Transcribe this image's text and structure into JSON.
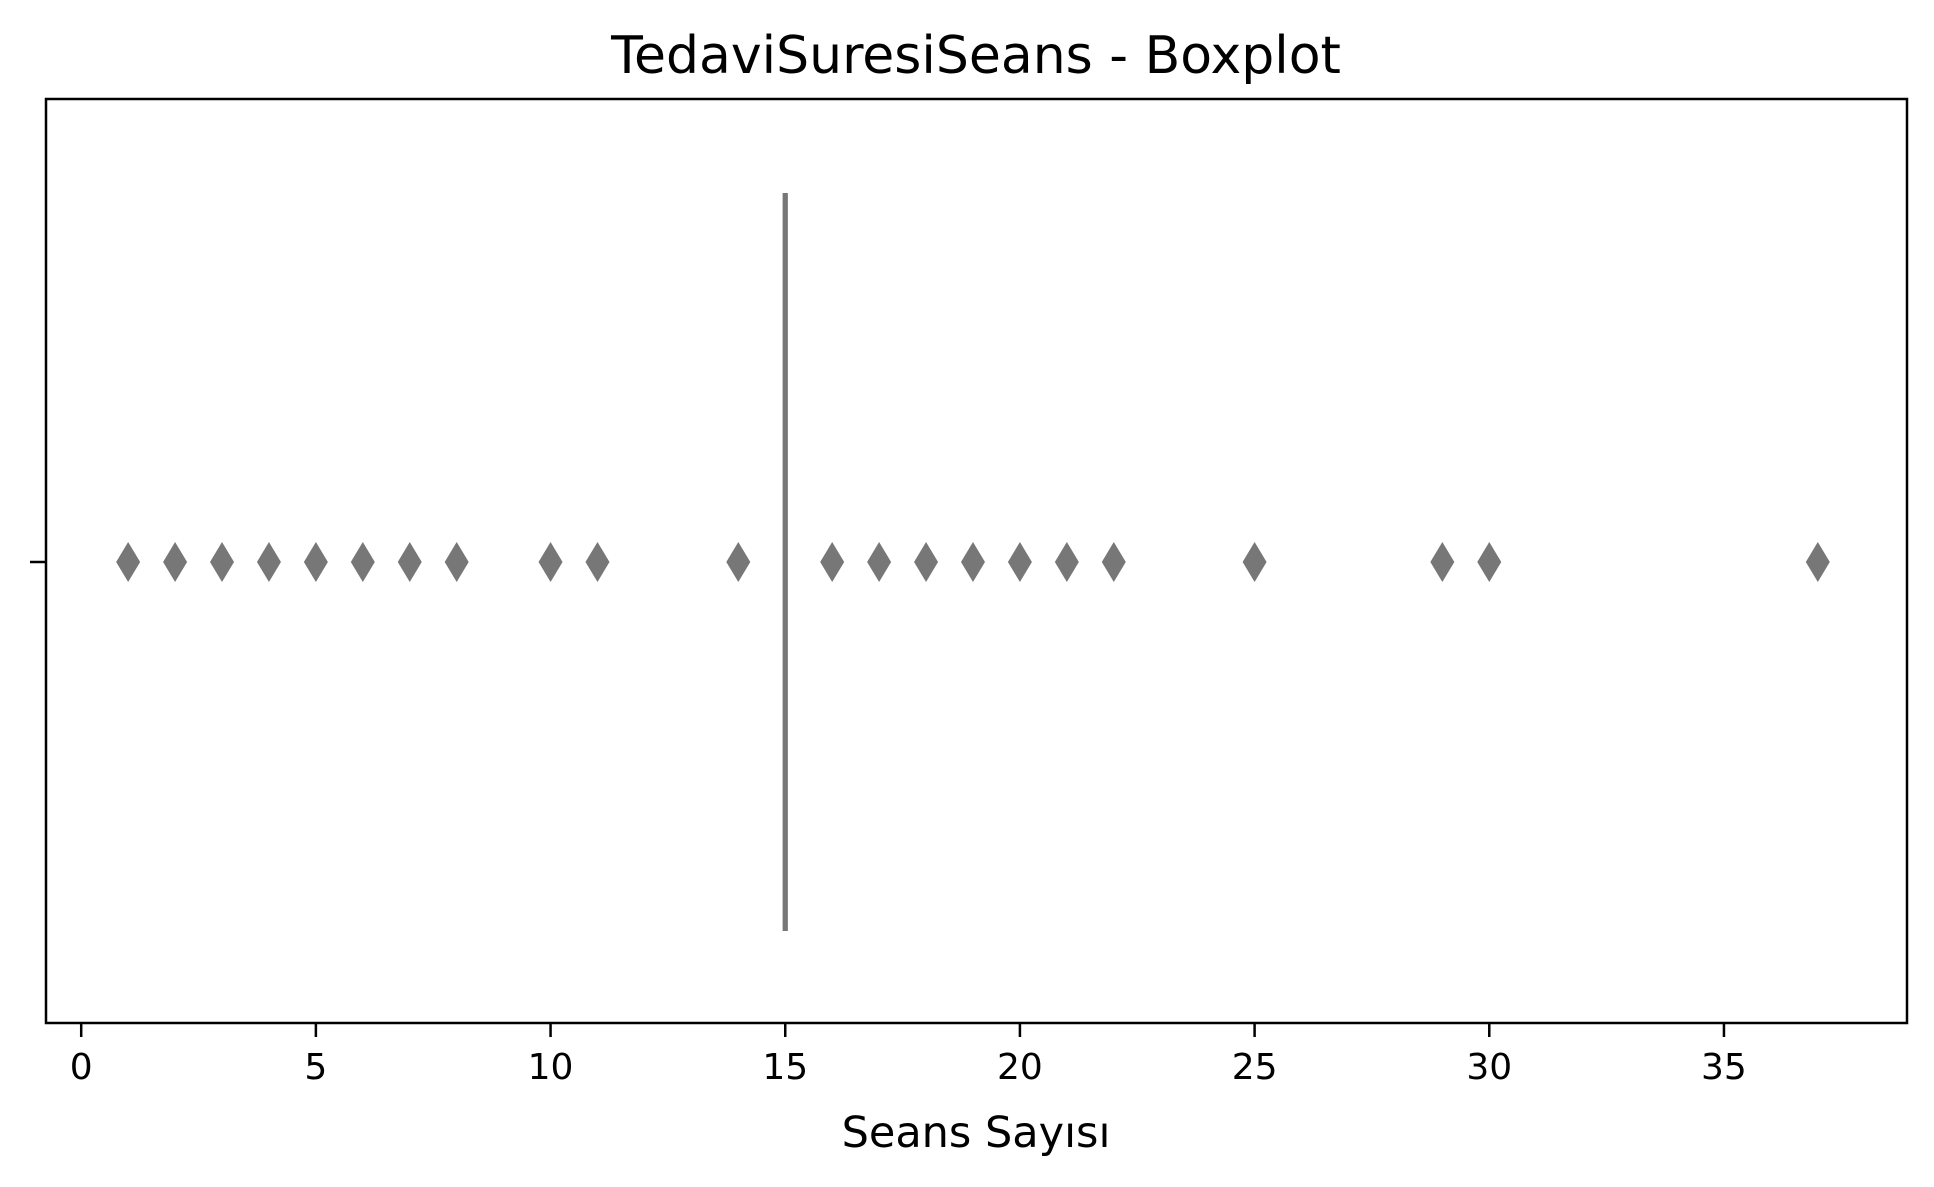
{
  "chart_data": {
    "type": "boxplot",
    "orientation": "horizontal",
    "title": "TedaviSuresiSeans - Boxplot",
    "xlabel": "Seans Sayısı",
    "ylabel": "",
    "xlim": [
      -0.75,
      38.9
    ],
    "xticks": [
      0,
      5,
      10,
      15,
      20,
      25,
      30,
      35
    ],
    "xtick_labels": [
      "0",
      "5",
      "10",
      "15",
      "20",
      "25",
      "30",
      "35"
    ],
    "grid": false,
    "color": "#777777",
    "box": {
      "q1": 15,
      "median": 15,
      "q3": 15,
      "whisker_low": 15,
      "whisker_high": 15
    },
    "outliers": [
      1,
      2,
      3,
      4,
      5,
      6,
      7,
      8,
      10,
      11,
      14,
      16,
      17,
      18,
      19,
      20,
      21,
      22,
      25,
      29,
      30,
      37
    ]
  }
}
